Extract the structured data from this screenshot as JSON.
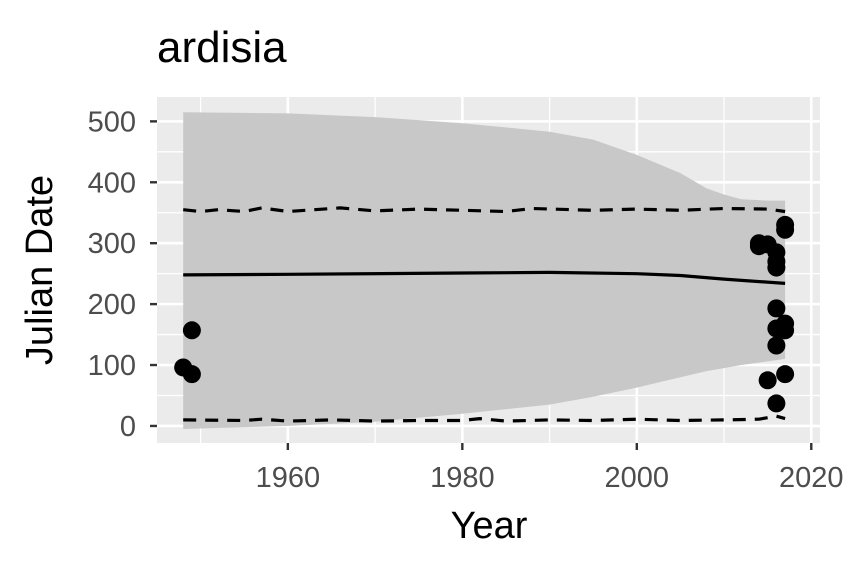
{
  "chart_data": {
    "type": "scatter",
    "title": "ardisia",
    "xlabel": "Year",
    "ylabel": "Julian Date",
    "xlim": [
      1945,
      2021
    ],
    "ylim": [
      -28,
      540
    ],
    "x_ticks": [
      1960,
      1980,
      2000,
      2020
    ],
    "x_tick_labels": [
      "1960",
      "1980",
      "2000",
      "2020"
    ],
    "y_ticks": [
      0,
      100,
      200,
      300,
      400,
      500
    ],
    "y_tick_labels": [
      "0",
      "100",
      "200",
      "300",
      "400",
      "500"
    ],
    "grid": true,
    "legend": "none",
    "colors": {
      "panel": "#ebebeb",
      "grid": "#ffffff",
      "ribbon": "#c8c8c8",
      "points": "#000000",
      "lines": "#000000"
    },
    "points": [
      {
        "x": 1948,
        "y": 96
      },
      {
        "x": 1949,
        "y": 157
      },
      {
        "x": 1949,
        "y": 85
      },
      {
        "x": 2014,
        "y": 300
      },
      {
        "x": 2014,
        "y": 295
      },
      {
        "x": 2015,
        "y": 298
      },
      {
        "x": 2015,
        "y": 75
      },
      {
        "x": 2016,
        "y": 285
      },
      {
        "x": 2016,
        "y": 270
      },
      {
        "x": 2016,
        "y": 260
      },
      {
        "x": 2016,
        "y": 193
      },
      {
        "x": 2016,
        "y": 160
      },
      {
        "x": 2016,
        "y": 132
      },
      {
        "x": 2016,
        "y": 37
      },
      {
        "x": 2017,
        "y": 330
      },
      {
        "x": 2017,
        "y": 322
      },
      {
        "x": 2017,
        "y": 168
      },
      {
        "x": 2017,
        "y": 157
      },
      {
        "x": 2017,
        "y": 85
      }
    ],
    "fit_line": {
      "x": [
        1948,
        1960,
        1980,
        1990,
        2000,
        2005,
        2010,
        2017
      ],
      "y": [
        248,
        249,
        251,
        252,
        250,
        247,
        241,
        234
      ]
    },
    "ribbon": {
      "x": [
        1948,
        1960,
        1970,
        1980,
        1990,
        1995,
        2000,
        2005,
        2008,
        2010,
        2012,
        2015,
        2017
      ],
      "upper": [
        515,
        513,
        507,
        497,
        483,
        470,
        445,
        415,
        390,
        380,
        372,
        370,
        370
      ],
      "lower": [
        -5,
        0,
        7,
        20,
        35,
        48,
        63,
        80,
        90,
        95,
        100,
        106,
        110
      ]
    },
    "upper_dashed": {
      "x": [
        1948,
        1950,
        1952,
        1955,
        1957,
        1960,
        1963,
        1966,
        1970,
        1975,
        1980,
        1985,
        1988,
        1995,
        2000,
        2005,
        2010,
        2015,
        2017
      ],
      "y": [
        355,
        352,
        355,
        352,
        358,
        352,
        355,
        358,
        353,
        356,
        354,
        352,
        357,
        354,
        356,
        354,
        357,
        356,
        352
      ]
    },
    "lower_dashed": {
      "x": [
        1948,
        1955,
        1957,
        1960,
        1965,
        1970,
        1975,
        1980,
        1982,
        1985,
        1990,
        1995,
        2000,
        2005,
        2010,
        2014,
        2016,
        2017
      ],
      "y": [
        10,
        9,
        11,
        8,
        10,
        8,
        9,
        9,
        12,
        8,
        10,
        9,
        11,
        9,
        10,
        11,
        16,
        12
      ]
    }
  }
}
